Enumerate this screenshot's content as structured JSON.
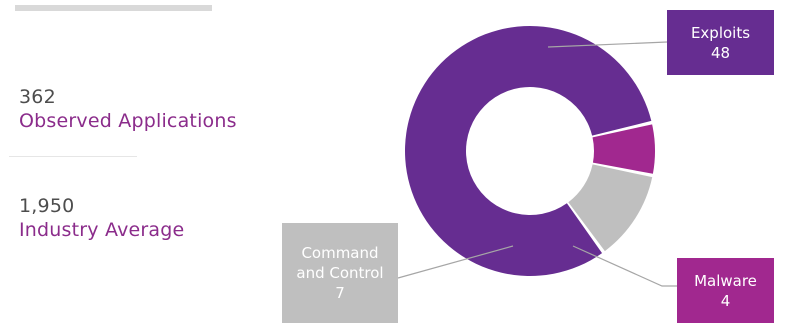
{
  "stats": [
    {
      "value": "362",
      "label": "Observed Applications"
    },
    {
      "value": "1,950",
      "label": "Industry Average"
    }
  ],
  "colors": {
    "accent_text": "#8b2c8b",
    "exploits": "#662d91",
    "malware": "#a1288f",
    "command_control": "#bfbfbf",
    "leader": "#a6a6a6"
  },
  "chart_data": {
    "type": "donut",
    "title": "",
    "slices": [
      {
        "name": "Exploits",
        "value": 48
      },
      {
        "name": "Malware",
        "value": 4
      },
      {
        "name": "Command and Control",
        "value": 7
      }
    ],
    "callouts": [
      {
        "lines": [
          "Exploits",
          "48"
        ]
      },
      {
        "lines": [
          "Malware",
          "4"
        ]
      },
      {
        "lines": [
          "Command",
          "and Control",
          "7"
        ]
      }
    ]
  }
}
